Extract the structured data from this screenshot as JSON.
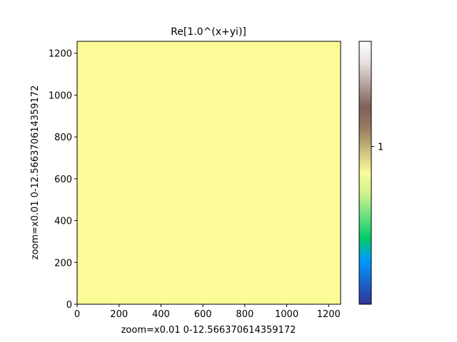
{
  "chart_data": {
    "type": "heatmap",
    "title": "Re[1.0^(x+yi)]",
    "xlabel": "zoom=x0.01  0-12.566370614359172",
    "ylabel": "zoom=x0.01  0-12.566370614359172",
    "xlim": [
      0,
      1257
    ],
    "ylim": [
      0,
      1257
    ],
    "xticks": [
      0,
      200,
      400,
      600,
      800,
      1000,
      1200
    ],
    "yticks": [
      0,
      200,
      400,
      600,
      800,
      1000,
      1200
    ],
    "grid": false,
    "uniform_value": 1,
    "fill_color": "#fbfb98",
    "colormap": "terrain",
    "colorbar": {
      "ticks": [
        1
      ],
      "tick_labels": [
        "1"
      ],
      "stops": [
        "#333399",
        "#1a66cc",
        "#0099ff",
        "#00cc66",
        "#66e080",
        "#ccf28a",
        "#fbfb98",
        "#ccbe7d",
        "#997e5e",
        "#80605a",
        "#b39f9a",
        "#e6dfdd",
        "#ffffff"
      ]
    }
  }
}
